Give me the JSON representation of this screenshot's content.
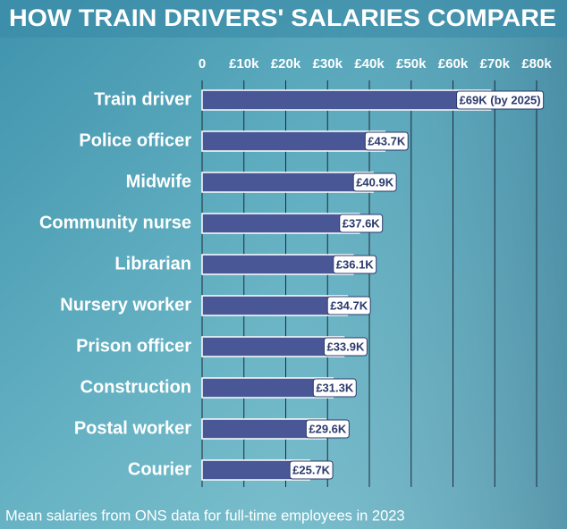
{
  "chart_data": {
    "type": "bar",
    "orientation": "horizontal",
    "title": "HOW TRAIN DRIVERS' SALARIES COMPARE",
    "caption": "Mean salaries from ONS data for full-time employees in 2023",
    "categories": [
      "Train driver",
      "Police officer",
      "Midwife",
      "Community nurse",
      "Librarian",
      "Nursery worker",
      "Prison officer",
      "Construction",
      "Postal worker",
      "Courier"
    ],
    "values": [
      69000,
      43700,
      40900,
      37600,
      36100,
      34700,
      33900,
      31300,
      29600,
      25700
    ],
    "value_labels": [
      "£69K (by 2025)",
      "£43.7K",
      "£40.9K",
      "£37.6K",
      "£36.1K",
      "£34.7K",
      "£33.9K",
      "£31.3K",
      "£29.6K",
      "£25.7K"
    ],
    "color": "#4a5796",
    "xlim": [
      0,
      80000
    ],
    "xticks": [
      0,
      {
        "value": 10000,
        "label": "£10k"
      },
      {
        "value": 20000,
        "label": "£20k"
      },
      {
        "value": 30000,
        "label": "£30k"
      },
      {
        "value": 40000,
        "label": "£40k"
      },
      {
        "value": 50000,
        "label": "£50k"
      },
      {
        "value": 60000,
        "label": "£60k"
      },
      {
        "value": 70000,
        "label": "£70k"
      },
      {
        "value": 80000,
        "label": "£80k"
      }
    ],
    "grid": true
  }
}
